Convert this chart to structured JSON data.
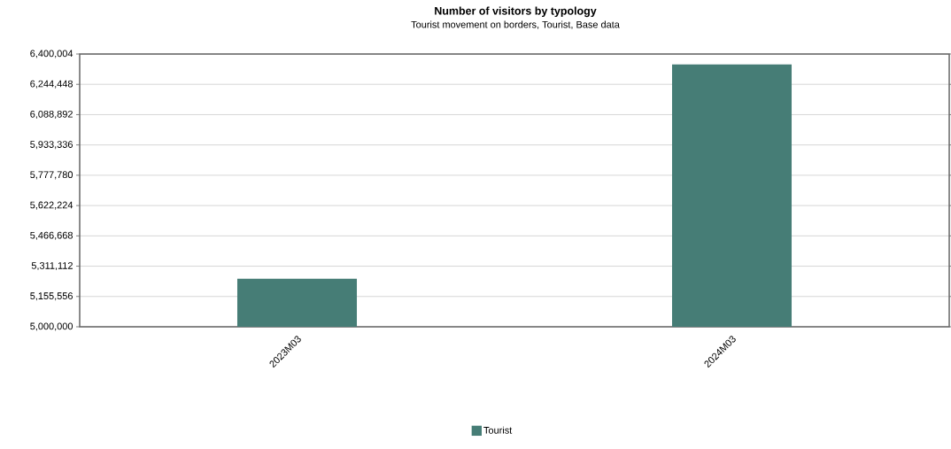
{
  "chart_data": {
    "type": "bar",
    "title": "Number of visitors by typology",
    "subtitle": "Tourist movement on borders, Tourist, Base data",
    "categories": [
      "2023M03",
      "2024M03"
    ],
    "series": [
      {
        "name": "Tourist",
        "color": "#467d76",
        "values": [
          5247000,
          6347000
        ]
      }
    ],
    "ylim": [
      5000000,
      6400004
    ],
    "yticks": [
      {
        "value": 5000000,
        "label": "5,000,000"
      },
      {
        "value": 5155556,
        "label": "5,155,556"
      },
      {
        "value": 5311112,
        "label": "5,311,112"
      },
      {
        "value": 5466668,
        "label": "5,466,668"
      },
      {
        "value": 5622224,
        "label": "5,622,224"
      },
      {
        "value": 5777780,
        "label": "5,777,780"
      },
      {
        "value": 5933336,
        "label": "5,933,336"
      },
      {
        "value": 6088892,
        "label": "6,088,892"
      },
      {
        "value": 6244448,
        "label": "6,244,448"
      },
      {
        "value": 6400004,
        "label": "6,400,004"
      }
    ],
    "grid": "y",
    "legend": "bottom"
  }
}
